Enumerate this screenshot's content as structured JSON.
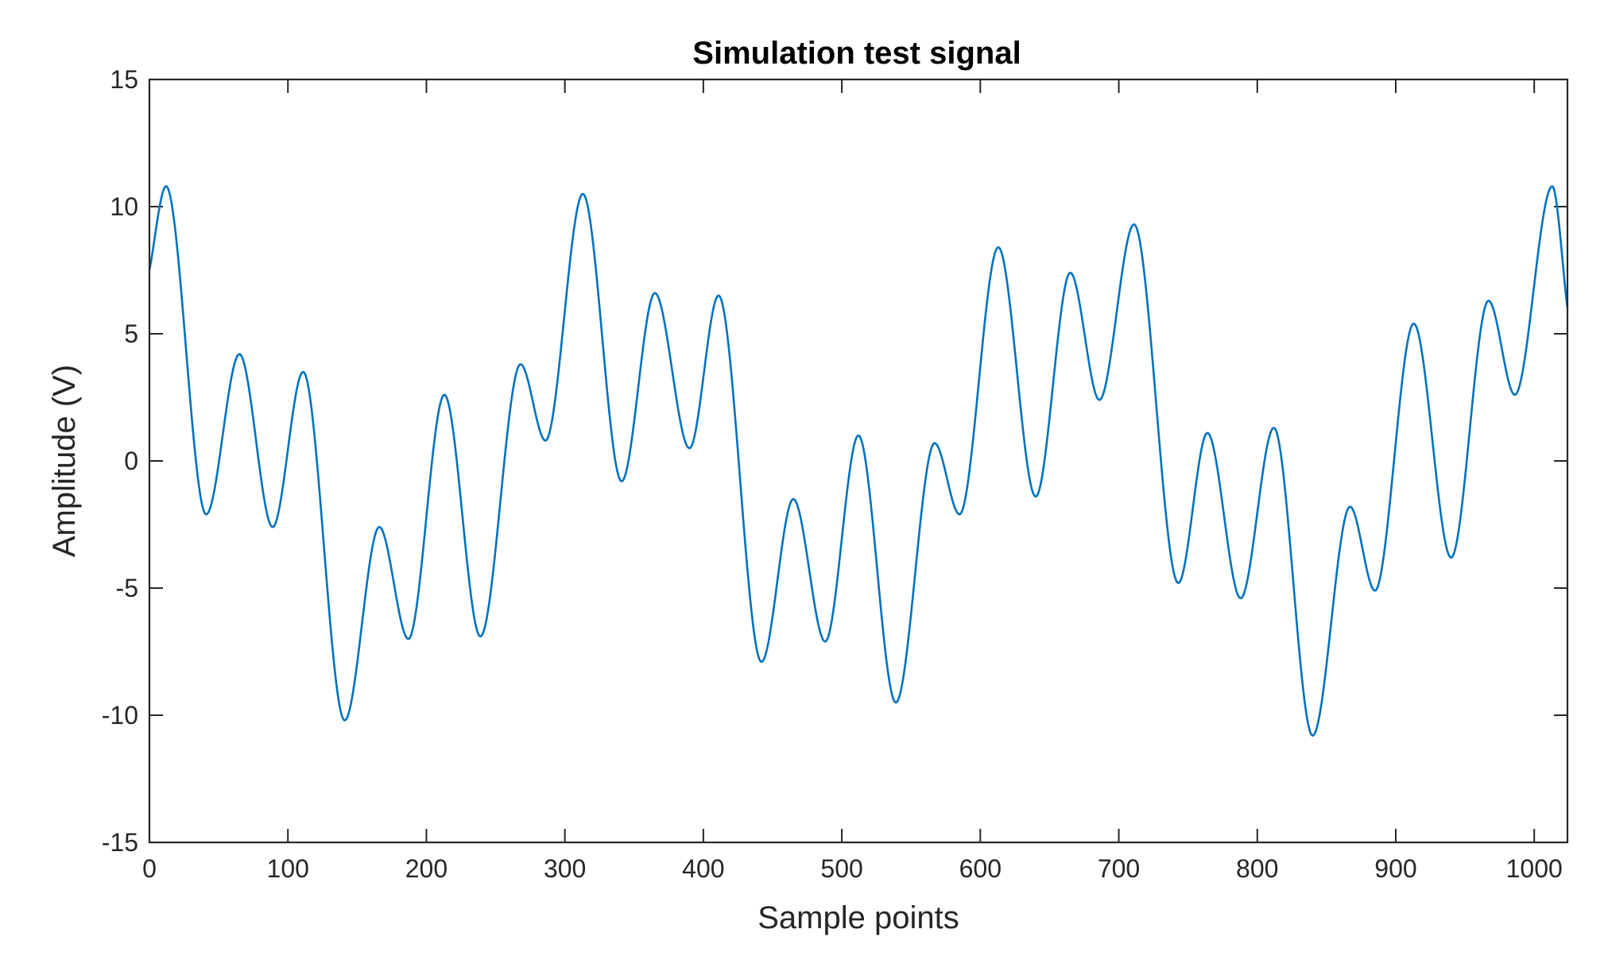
{
  "chart_data": {
    "type": "line",
    "title": "Simulation test signal",
    "xlabel": "Sample points",
    "ylabel": "Amplitude (V)",
    "xlim": [
      0,
      1024
    ],
    "ylim": [
      -15,
      15
    ],
    "xticks": [
      0,
      100,
      200,
      300,
      400,
      500,
      600,
      700,
      800,
      900,
      1000
    ],
    "xtick_labels": [
      "0",
      "100",
      "200",
      "300",
      "400",
      "500",
      "600",
      "700",
      "800",
      "900",
      "1000"
    ],
    "yticks": [
      15,
      10,
      5,
      0,
      -5,
      -10,
      -15
    ],
    "ytick_labels": [
      "15",
      "10",
      "5",
      "0",
      "-5",
      "-10",
      "-15"
    ],
    "grid": false,
    "legend": "none",
    "series": [
      {
        "color": "#0072BD",
        "x": [
          0,
          12,
          41,
          65,
          89,
          111,
          141,
          166,
          187,
          213,
          239,
          268,
          286,
          313,
          341,
          365,
          390,
          411,
          442,
          465,
          488,
          512,
          539,
          567,
          585,
          613,
          640,
          665,
          686,
          711,
          743,
          764,
          788,
          812,
          840,
          867,
          885,
          913,
          940,
          967,
          986,
          1013,
          1024
        ],
        "values": [
          7.5,
          10.8,
          -2.1,
          4.2,
          -2.6,
          3.5,
          -10.2,
          -2.6,
          -7.0,
          2.6,
          -6.9,
          3.8,
          0.8,
          10.5,
          -0.8,
          6.6,
          0.5,
          6.5,
          -7.9,
          -1.5,
          -7.1,
          1.0,
          -9.5,
          0.7,
          -2.1,
          8.4,
          -1.4,
          7.4,
          2.4,
          9.3,
          -4.8,
          1.1,
          -5.4,
          1.3,
          -10.8,
          -1.8,
          -5.1,
          5.4,
          -3.8,
          6.3,
          2.6,
          10.8,
          6.0
        ]
      }
    ]
  }
}
